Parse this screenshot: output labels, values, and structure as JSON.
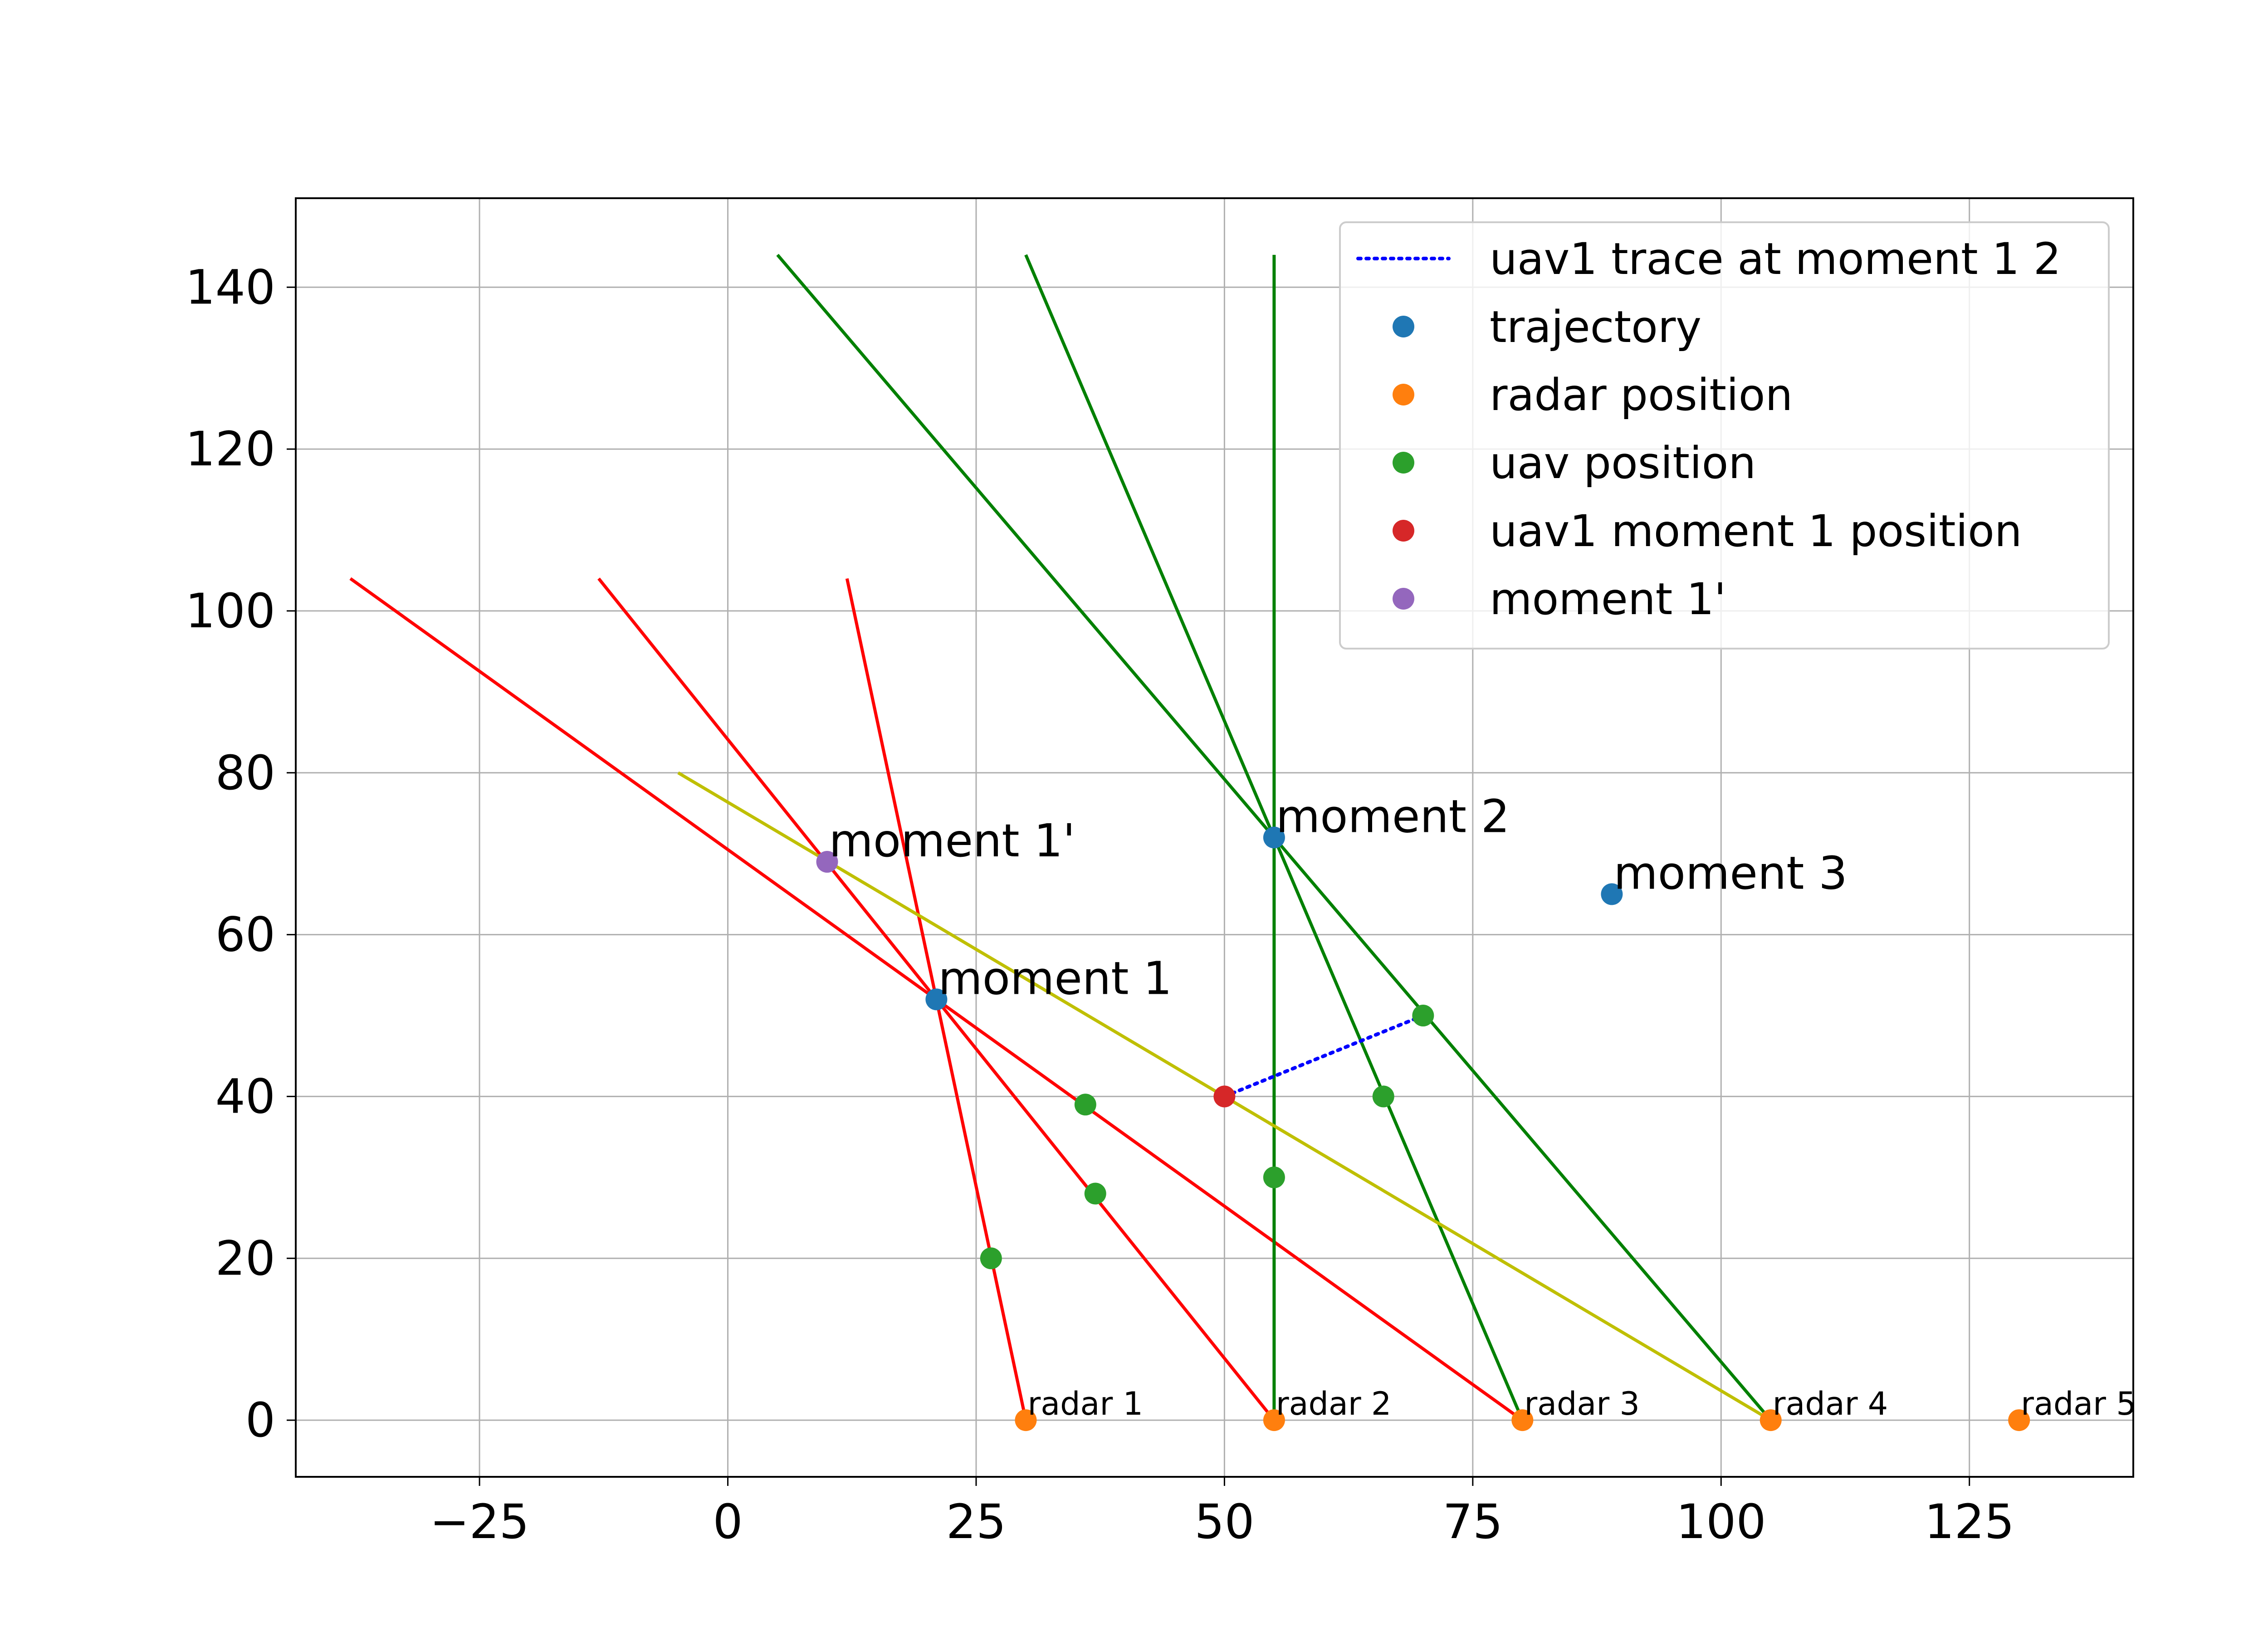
{
  "chart_data": {
    "type": "scatter",
    "title": "",
    "xlabel": "",
    "ylabel": "",
    "xlim": [
      -43.5,
      141.5
    ],
    "ylim": [
      -7,
      151
    ],
    "xticks": [
      -25,
      0,
      25,
      50,
      75,
      100,
      125
    ],
    "xtick_labels": [
      "−25",
      "0",
      "25",
      "50",
      "75",
      "100",
      "125"
    ],
    "yticks": [
      0,
      20,
      40,
      60,
      80,
      100,
      120,
      140
    ],
    "ytick_labels": [
      "0",
      "20",
      "40",
      "60",
      "80",
      "100",
      "120",
      "140"
    ],
    "grid": true,
    "legend_position": "top-right",
    "legend": [
      {
        "label": "uav1 trace at moment 1 2",
        "kind": "dotted-line",
        "color": "#0000ff"
      },
      {
        "label": "trajectory",
        "kind": "marker",
        "color": "#1f77b4"
      },
      {
        "label": "radar position",
        "kind": "marker",
        "color": "#ff7f0e"
      },
      {
        "label": "uav position",
        "kind": "marker",
        "color": "#2ca02c"
      },
      {
        "label": "uav1 moment 1 position",
        "kind": "marker",
        "color": "#d62728"
      },
      {
        "label": "moment 1'",
        "kind": "marker",
        "color": "#9467bd"
      }
    ],
    "lines": [
      {
        "name": "",
        "color": "#ff0000",
        "points": [
          [
            30,
            0
          ],
          [
            12,
            104
          ]
        ]
      },
      {
        "name": "",
        "color": "#ff0000",
        "points": [
          [
            55,
            0
          ],
          [
            -13,
            104
          ]
        ]
      },
      {
        "name": "",
        "color": "#ff0000",
        "points": [
          [
            80,
            0
          ],
          [
            -38,
            104
          ]
        ]
      },
      {
        "name": "",
        "color": "#008000",
        "points": [
          [
            55,
            0
          ],
          [
            55,
            144
          ]
        ]
      },
      {
        "name": "",
        "color": "#008000",
        "points": [
          [
            80,
            0
          ],
          [
            30,
            144
          ]
        ]
      },
      {
        "name": "",
        "color": "#008000",
        "points": [
          [
            105,
            0
          ],
          [
            5,
            144
          ]
        ]
      },
      {
        "name": "",
        "color": "#bfbf00",
        "points": [
          [
            105,
            0
          ],
          [
            -5,
            80
          ]
        ]
      },
      {
        "name": "uav1 trace at moment 1 2",
        "color": "#0000ff",
        "dotted": true,
        "points": [
          [
            50,
            40
          ],
          [
            70,
            50
          ]
        ]
      }
    ],
    "series": [
      {
        "name": "trajectory",
        "color": "#1f77b4",
        "points": [
          [
            21,
            52
          ],
          [
            55,
            72
          ],
          [
            89,
            65
          ]
        ]
      },
      {
        "name": "radar position",
        "color": "#ff7f0e",
        "points": [
          [
            30,
            0
          ],
          [
            55,
            0
          ],
          [
            80,
            0
          ],
          [
            105,
            0
          ],
          [
            130,
            0
          ]
        ]
      },
      {
        "name": "uav position",
        "color": "#2ca02c",
        "points": [
          [
            26.5,
            20
          ],
          [
            37,
            28
          ],
          [
            36,
            39
          ],
          [
            55,
            30
          ],
          [
            66,
            40
          ],
          [
            70,
            50
          ]
        ]
      },
      {
        "name": "uav1 moment 1 position",
        "color": "#d62728",
        "points": [
          [
            50,
            40
          ]
        ]
      },
      {
        "name": "moment 1'",
        "color": "#9467bd",
        "points": [
          [
            10,
            69
          ]
        ]
      }
    ],
    "annotations": [
      {
        "text": "moment 1",
        "x": 21,
        "y": 52,
        "size": "large"
      },
      {
        "text": "moment 2",
        "x": 55,
        "y": 72,
        "size": "large"
      },
      {
        "text": "moment 3",
        "x": 89,
        "y": 65,
        "size": "large"
      },
      {
        "text": "moment 1'",
        "x": 10,
        "y": 69,
        "size": "large"
      },
      {
        "text": "radar 1",
        "x": 30,
        "y": 0,
        "size": "small"
      },
      {
        "text": "radar 2",
        "x": 55,
        "y": 0,
        "size": "small"
      },
      {
        "text": "radar 3",
        "x": 80,
        "y": 0,
        "size": "small"
      },
      {
        "text": "radar 4",
        "x": 105,
        "y": 0,
        "size": "small"
      },
      {
        "text": "radar 5",
        "x": 130,
        "y": 0,
        "size": "small"
      }
    ]
  }
}
